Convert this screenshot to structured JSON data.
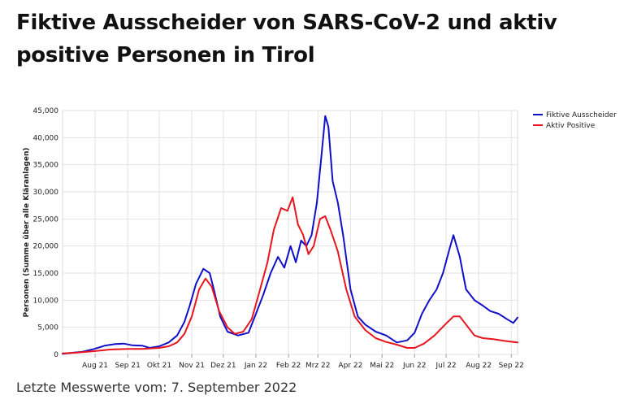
{
  "page": {
    "title": "Fiktive Ausscheider von SARS-CoV-2 und aktiv positive Personen in Tirol",
    "footer": "Letzte Messwerte vom: 7. September 2022"
  },
  "chart_data": {
    "type": "line",
    "title": "",
    "xlabel": "",
    "ylabel": "Personen (Summe über alle Kläranlagen)",
    "ylim": [
      0,
      45000
    ],
    "yticks": [
      0,
      5000,
      10000,
      15000,
      20000,
      25000,
      30000,
      35000,
      40000,
      45000
    ],
    "ytick_labels": [
      "0",
      "5,000",
      "10,000",
      "15,000",
      "20,000",
      "25,000",
      "30,000",
      "35,000",
      "40,000",
      "45,000"
    ],
    "x_domain": [
      "2021-07-01",
      "2022-09-07"
    ],
    "xticks": [
      "2021-08-01",
      "2021-09-01",
      "2021-10-01",
      "2021-11-01",
      "2021-12-01",
      "2022-01-01",
      "2022-02-01",
      "2022-03-01",
      "2022-04-01",
      "2022-05-01",
      "2022-06-01",
      "2022-07-01",
      "2022-08-01",
      "2022-09-01"
    ],
    "xtick_labels": [
      "Aug 21",
      "Sep 21",
      "Okt 21",
      "Nov 21",
      "Dez 21",
      "Jan 22",
      "Feb 22",
      "Mrz 22",
      "Apr 22",
      "Mai 22",
      "Jun 22",
      "Jul 22",
      "Aug 22",
      "Sep 22"
    ],
    "grid": true,
    "legend_position": "top-right",
    "series": [
      {
        "name": "Fiktive Ausscheider",
        "color": "#1010c8",
        "points": [
          [
            "2021-07-01",
            100
          ],
          [
            "2021-07-10",
            300
          ],
          [
            "2021-07-20",
            500
          ],
          [
            "2021-07-31",
            1000
          ],
          [
            "2021-08-10",
            1600
          ],
          [
            "2021-08-20",
            1900
          ],
          [
            "2021-08-28",
            2000
          ],
          [
            "2021-09-05",
            1700
          ],
          [
            "2021-09-15",
            1600
          ],
          [
            "2021-09-22",
            1200
          ],
          [
            "2021-10-01",
            1500
          ],
          [
            "2021-10-10",
            2200
          ],
          [
            "2021-10-18",
            3500
          ],
          [
            "2021-10-25",
            6000
          ],
          [
            "2021-10-30",
            9000
          ],
          [
            "2021-11-05",
            13000
          ],
          [
            "2021-11-12",
            15800
          ],
          [
            "2021-11-18",
            15000
          ],
          [
            "2021-11-22",
            12000
          ],
          [
            "2021-11-28",
            7000
          ],
          [
            "2021-12-05",
            4200
          ],
          [
            "2021-12-15",
            3500
          ],
          [
            "2021-12-25",
            4000
          ],
          [
            "2022-01-01",
            7500
          ],
          [
            "2022-01-08",
            11000
          ],
          [
            "2022-01-15",
            15000
          ],
          [
            "2022-01-22",
            18000
          ],
          [
            "2022-01-28",
            16000
          ],
          [
            "2022-02-03",
            20000
          ],
          [
            "2022-02-08",
            17000
          ],
          [
            "2022-02-13",
            21000
          ],
          [
            "2022-02-18",
            20000
          ],
          [
            "2022-02-23",
            22000
          ],
          [
            "2022-02-28",
            28000
          ],
          [
            "2022-03-04",
            36000
          ],
          [
            "2022-03-08",
            44000
          ],
          [
            "2022-03-11",
            42000
          ],
          [
            "2022-03-15",
            32000
          ],
          [
            "2022-03-20",
            28000
          ],
          [
            "2022-03-25",
            22000
          ],
          [
            "2022-04-01",
            12000
          ],
          [
            "2022-04-08",
            7000
          ],
          [
            "2022-04-15",
            5500
          ],
          [
            "2022-04-25",
            4200
          ],
          [
            "2022-05-05",
            3500
          ],
          [
            "2022-05-15",
            2200
          ],
          [
            "2022-05-25",
            2600
          ],
          [
            "2022-06-01",
            4000
          ],
          [
            "2022-06-08",
            7500
          ],
          [
            "2022-06-15",
            10000
          ],
          [
            "2022-06-22",
            12000
          ],
          [
            "2022-06-28",
            15000
          ],
          [
            "2022-07-05",
            20000
          ],
          [
            "2022-07-08",
            22000
          ],
          [
            "2022-07-14",
            18000
          ],
          [
            "2022-07-20",
            12000
          ],
          [
            "2022-07-28",
            10000
          ],
          [
            "2022-08-05",
            9000
          ],
          [
            "2022-08-12",
            8000
          ],
          [
            "2022-08-20",
            7500
          ],
          [
            "2022-08-28",
            6500
          ],
          [
            "2022-09-03",
            5800
          ],
          [
            "2022-09-07",
            6800
          ]
        ]
      },
      {
        "name": "Aktiv Positive",
        "color": "#e8141e",
        "points": [
          [
            "2021-07-01",
            200
          ],
          [
            "2021-07-15",
            350
          ],
          [
            "2021-07-31",
            600
          ],
          [
            "2021-08-15",
            900
          ],
          [
            "2021-09-01",
            1000
          ],
          [
            "2021-09-15",
            1000
          ],
          [
            "2021-10-01",
            1200
          ],
          [
            "2021-10-10",
            1500
          ],
          [
            "2021-10-18",
            2200
          ],
          [
            "2021-10-25",
            3800
          ],
          [
            "2021-11-01",
            7000
          ],
          [
            "2021-11-08",
            12000
          ],
          [
            "2021-11-14",
            14000
          ],
          [
            "2021-11-20",
            12500
          ],
          [
            "2021-11-27",
            8000
          ],
          [
            "2021-12-05",
            5000
          ],
          [
            "2021-12-12",
            3800
          ],
          [
            "2021-12-20",
            4200
          ],
          [
            "2021-12-28",
            6500
          ],
          [
            "2022-01-05",
            12000
          ],
          [
            "2022-01-12",
            17000
          ],
          [
            "2022-01-18",
            23000
          ],
          [
            "2022-01-25",
            27000
          ],
          [
            "2022-01-31",
            26500
          ],
          [
            "2022-02-05",
            29000
          ],
          [
            "2022-02-10",
            24000
          ],
          [
            "2022-02-15",
            22000
          ],
          [
            "2022-02-20",
            18500
          ],
          [
            "2022-02-25",
            20000
          ],
          [
            "2022-03-03",
            25000
          ],
          [
            "2022-03-08",
            25500
          ],
          [
            "2022-03-13",
            23000
          ],
          [
            "2022-03-20",
            19000
          ],
          [
            "2022-03-28",
            12000
          ],
          [
            "2022-04-05",
            7000
          ],
          [
            "2022-04-15",
            4500
          ],
          [
            "2022-04-25",
            3000
          ],
          [
            "2022-05-05",
            2300
          ],
          [
            "2022-05-15",
            1800
          ],
          [
            "2022-05-25",
            1200
          ],
          [
            "2022-06-01",
            1200
          ],
          [
            "2022-06-10",
            2000
          ],
          [
            "2022-06-20",
            3500
          ],
          [
            "2022-06-30",
            5500
          ],
          [
            "2022-07-08",
            7000
          ],
          [
            "2022-07-14",
            7000
          ],
          [
            "2022-07-20",
            5500
          ],
          [
            "2022-07-28",
            3500
          ],
          [
            "2022-08-05",
            3000
          ],
          [
            "2022-08-15",
            2800
          ],
          [
            "2022-08-25",
            2500
          ],
          [
            "2022-09-07",
            2200
          ]
        ]
      }
    ]
  }
}
